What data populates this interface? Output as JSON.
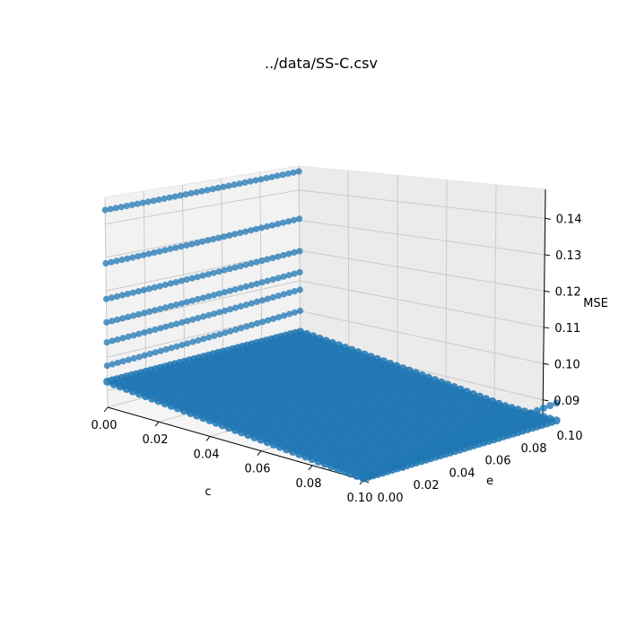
{
  "chart_data": {
    "type": "scatter",
    "projection": "3d",
    "title": "../data/SS-C.csv",
    "xlabel": "c",
    "ylabel": "e",
    "zlabel": "MSE",
    "xlim": [
      0.0,
      0.1
    ],
    "ylim": [
      0.0,
      0.1
    ],
    "zlim": [
      0.085,
      0.148
    ],
    "xticks": [
      "0.00",
      "0.02",
      "0.04",
      "0.06",
      "0.08",
      "0.10"
    ],
    "yticks": [
      "0.00",
      "0.02",
      "0.04",
      "0.06",
      "0.08",
      "0.10"
    ],
    "zticks": [
      "0.09",
      "0.10",
      "0.11",
      "0.12",
      "0.13",
      "0.14"
    ],
    "grid": true,
    "color": "#1f77b4",
    "series": [
      {
        "description": "rows at c = 0",
        "c": 0.0,
        "e_range": [
          0.0,
          0.1
        ],
        "mse_at_e0": [
          0.1442,
          0.1282,
          0.1175,
          0.1105,
          0.1045,
          0.0975
        ],
        "mse_at_e1": [
          0.1462,
          0.1305,
          0.1198,
          0.1128,
          0.107,
          0.1
        ]
      },
      {
        "description": "surface",
        "c_range": [
          0.0,
          0.1
        ],
        "e_range": [
          0.0,
          0.1
        ],
        "mse_range": [
          0.0855,
          0.0975
        ]
      }
    ]
  }
}
